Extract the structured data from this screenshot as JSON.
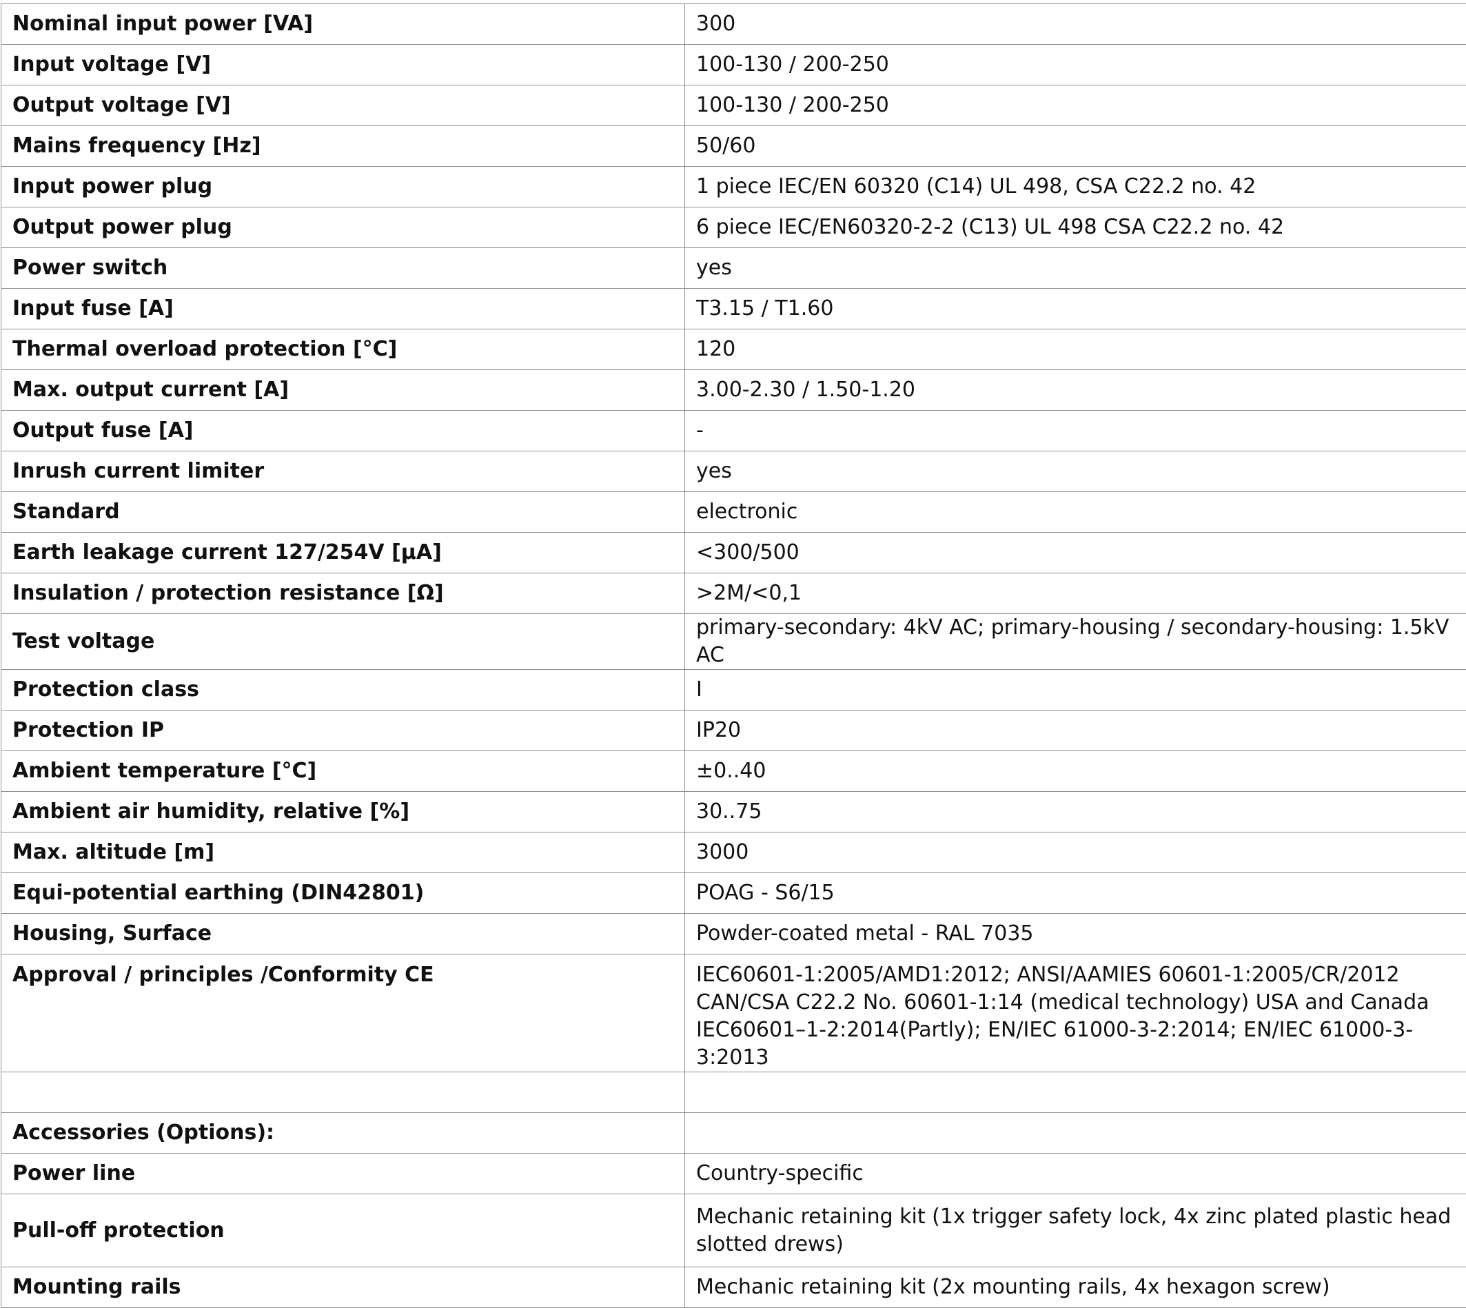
{
  "table": {
    "rows": [
      {
        "label": "Nominal input power [VA]",
        "value": "300"
      },
      {
        "label": "Input voltage [V]",
        "value": "100-130 / 200-250"
      },
      {
        "label": "Output voltage [V]",
        "value": "100-130 / 200-250"
      },
      {
        "label": "Mains frequency [Hz]",
        "value": "50/60"
      },
      {
        "label": "Input power plug",
        "value": "1 piece IEC/EN 60320 (C14) UL 498, CSA C22.2 no. 42"
      },
      {
        "label": "Output power plug",
        "value": "6 piece IEC/EN60320-2-2 (C13) UL 498 CSA C22.2 no. 42"
      },
      {
        "label": "Power switch",
        "value": "yes"
      },
      {
        "label": "Input fuse [A]",
        "value": "T3.15 / T1.60"
      },
      {
        "label": "Thermal overload protection [°C]",
        "value": "120"
      },
      {
        "label": "Max. output current [A]",
        "value": "3.00-2.30 / 1.50-1.20"
      },
      {
        "label": "Output fuse [A]",
        "value": "-"
      },
      {
        "label": "Inrush current limiter",
        "value": "yes"
      },
      {
        "label": "Standard",
        "value": "electronic"
      },
      {
        "label": "Earth leakage current 127/254V [µA]",
        "value": "<300/500"
      },
      {
        "label": "Insulation / protection resistance [Ω]",
        "value": ">2M/<0,1"
      },
      {
        "label": "Test voltage",
        "value": "primary-secondary: 4kV AC; primary-housing / secondary-housing: 1.5kV AC"
      },
      {
        "label": "Protection class",
        "value": "I"
      },
      {
        "label": "Protection IP",
        "value": "IP20"
      },
      {
        "label": "Ambient temperature [°C]",
        "value": "±0..40"
      },
      {
        "label": "Ambient air humidity, relative [%]",
        "value": "30..75"
      },
      {
        "label": "Max. altitude [m]",
        "value": "3000"
      },
      {
        "label": "Equi-potential earthing (DIN42801)",
        "value": "POAG - S6/15"
      },
      {
        "label": "Housing, Surface",
        "value": "Powder-coated metal - RAL 7035"
      },
      {
        "label": "Approval / principles /Conformity CE",
        "value": "IEC60601-1:2005/AMD1:2012; ANSI/AAMIES 60601-1:2005/CR/2012\nCAN/CSA C22.2 No. 60601-1:14 (medical technology) USA and Canada\nIEC60601–1-2:2014(Partly); EN/IEC 61000-3-2:2014; EN/IEC 61000-3-3:2013"
      },
      {
        "label": "",
        "value": ""
      },
      {
        "label": "Accessories (Options):",
        "value": ""
      },
      {
        "label": "Power line",
        "value": "Country-specific"
      },
      {
        "label": "Pull-off protection",
        "value": "Mechanic retaining kit (1x trigger safety lock, 4x zinc plated plastic head\nslotted drews)"
      },
      {
        "label": "Mounting rails",
        "value": "Mechanic retaining kit (2x mounting rails, 4x hexagon screw)"
      }
    ]
  },
  "colors": {
    "border": "#8f8f8f",
    "text": "#111111",
    "background": "#ffffff"
  }
}
